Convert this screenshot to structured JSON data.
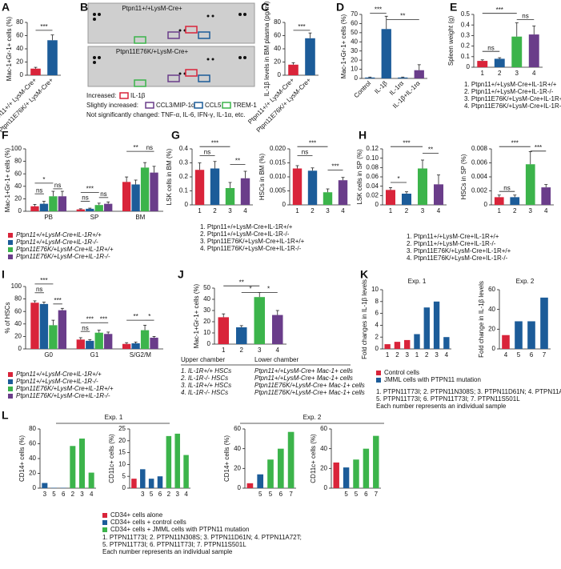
{
  "panel_b": {
    "letter": "B",
    "blot_titles": [
      "Ptpn11+/+LysM-Cre+",
      "Ptpn11E76K/+LysM-Cre+"
    ],
    "legend": [
      "Increased:",
      "IL-1β",
      "Slightly increased:",
      "CCL3/MIP-1α",
      "CCL5",
      "TREM-1",
      "Not significantly changed:  TNF-α, IL-6, IFN-γ, IL-1α, etc."
    ]
  },
  "chart_data": [
    {
      "type": "bar",
      "panel": "A",
      "ylabel": "Mac-1+Gr-1+ cells (%)",
      "categories": [
        "Ptpn11+/+ LysM-Cre+",
        "Ptpn11E76K/+ LysM-Cre+"
      ],
      "values": [
        10,
        53
      ],
      "errors": [
        2,
        8
      ],
      "colors": [
        "#d9243a",
        "#1c5c99"
      ],
      "ylim": [
        0,
        80
      ],
      "yticks": [
        0,
        20,
        40,
        60,
        80
      ],
      "annotations": [
        "***"
      ]
    },
    {
      "type": "bar",
      "panel": "C",
      "ylabel": "IL-1β levels in BM plasma (pg/ml)",
      "categories": [
        "Ptpn11+/+ LysM-Cre+",
        "Ptpn11E76K/+ LysM-Cre+"
      ],
      "values": [
        16,
        56
      ],
      "errors": [
        3,
        8
      ],
      "colors": [
        "#d9243a",
        "#1c5c99"
      ],
      "ylim": [
        0,
        80
      ],
      "yticks": [
        0,
        20,
        40,
        60,
        80
      ],
      "annotations": [
        "***"
      ]
    },
    {
      "type": "bar",
      "panel": "D",
      "ylabel": "Mac-1+Gr-1+ cells (%)",
      "categories": [
        "Control",
        "IL-1β",
        "IL-1rα",
        "IL-1β+IL-1rα"
      ],
      "values": [
        1,
        54,
        1,
        9
      ],
      "errors": [
        0.5,
        14,
        0.5,
        6
      ],
      "colors": [
        "#1c5c99",
        "#1c5c99",
        "#1c5c99",
        "#6a3d8a"
      ],
      "ylim": [
        0,
        70
      ],
      "yticks": [
        0,
        10,
        20,
        30,
        40,
        50,
        60,
        70
      ],
      "annotations": [
        "***",
        "**"
      ]
    },
    {
      "type": "bar",
      "panel": "E",
      "ylabel": "Spleen weight (g)",
      "categories": [
        "1",
        "2",
        "3",
        "4"
      ],
      "values": [
        0.06,
        0.08,
        0.29,
        0.31
      ],
      "errors": [
        0.01,
        0.01,
        0.13,
        0.08
      ],
      "colors": [
        "#d9243a",
        "#1c5c99",
        "#3cb44b",
        "#6a3d8a"
      ],
      "ylim": [
        0,
        0.5
      ],
      "yticks": [
        0,
        0.1,
        0.2,
        0.3,
        0.4,
        0.5
      ],
      "annotations": [
        "ns",
        "***",
        "ns"
      ],
      "notes": [
        "1. Ptpn11+/+LysM-Cre+IL-1R+/+",
        "2. Ptpn11+/+LysM-Cre+IL-1R-/-",
        "3. Ptpn11E76K/+LysM-Cre+IL-1R+/+",
        "4. Ptpn11E76K/+LysM-Cre+IL-1R-/-"
      ]
    },
    {
      "type": "bar",
      "panel": "F",
      "ylabel": "Mac-1+Gr-1+ cells (%)",
      "categories": [
        "PB",
        "SP",
        "BM"
      ],
      "ylim": [
        0,
        100
      ],
      "yticks": [
        0,
        20,
        40,
        60,
        80,
        100
      ],
      "series": [
        {
          "name": "Ptpn11+/+LysM-Cre+IL-1R+/+",
          "color": "#d9243a",
          "values": [
            8,
            3,
            47
          ],
          "errors": [
            3,
            1,
            8
          ]
        },
        {
          "name": "Ptpn11+/+LysM-Cre+IL-1R-/-",
          "color": "#1c5c99",
          "values": [
            12,
            4,
            43
          ],
          "errors": [
            4,
            1,
            7
          ]
        },
        {
          "name": "Ptpn11E76K/+LysM-Cre+IL-1R+/+",
          "color": "#3cb44b",
          "values": [
            24,
            10,
            70
          ],
          "errors": [
            8,
            3,
            8
          ]
        },
        {
          "name": "Ptpn11E76K/+LysM-Cre+IL-1R-/-",
          "color": "#6a3d8a",
          "values": [
            24,
            12,
            62
          ],
          "errors": [
            8,
            3,
            10
          ]
        }
      ],
      "annotations": [
        "*",
        "ns",
        "ns",
        "***",
        "ns",
        "ns",
        "**",
        "ns"
      ]
    },
    {
      "type": "bar",
      "panel": "G",
      "ylabel": "LSK cells in BM (%)",
      "categories": [
        "1",
        "2",
        "3",
        "4"
      ],
      "values": [
        0.25,
        0.26,
        0.12,
        0.19
      ],
      "errors": [
        0.05,
        0.05,
        0.04,
        0.05
      ],
      "colors": [
        "#d9243a",
        "#1c5c99",
        "#3cb44b",
        "#6a3d8a"
      ],
      "ylim": [
        0,
        0.4
      ],
      "yticks": [
        0,
        0.1,
        0.2,
        0.3,
        0.4
      ],
      "annotations": [
        "***",
        "ns",
        "**"
      ],
      "notes": [
        "1. Ptpn11+/+LysM-Cre+IL-1R+/+",
        "2. Ptpn11+/+LysM-Cre+IL-1R-/-",
        "3. Ptpn11E76K/+LysM-Cre+IL-1R+/+",
        "4. Ptpn11E76K/+LysM-Cre+IL-1R-/-"
      ]
    },
    {
      "type": "bar",
      "ylabel": "HSCs in BM (%)",
      "categories": [
        "1",
        "2",
        "3",
        "4"
      ],
      "values": [
        0.013,
        0.0122,
        0.0045,
        0.0088
      ],
      "errors": [
        0.001,
        0.001,
        0.0012,
        0.001
      ],
      "colors": [
        "#d9243a",
        "#1c5c99",
        "#3cb44b",
        "#6a3d8a"
      ],
      "ylim": [
        0,
        0.02
      ],
      "yticks": [
        0,
        0.005,
        {
          "value": 0.01,
          "label": "0.010"
        },
        0.015,
        {
          "value": 0.02,
          "label": "0.020"
        }
      ],
      "annotations": [
        "***",
        "ns",
        "***"
      ]
    },
    {
      "type": "bar",
      "panel": "H",
      "ylabel": "LSK cells in SP (%)",
      "categories": [
        "1",
        "2",
        "3",
        "4"
      ],
      "values": [
        0.032,
        0.024,
        0.078,
        0.044
      ],
      "errors": [
        0.005,
        0.004,
        0.018,
        0.02
      ],
      "colors": [
        "#d9243a",
        "#1c5c99",
        "#3cb44b",
        "#6a3d8a"
      ],
      "ylim": [
        0,
        0.12
      ],
      "yticks": [
        0,
        0.02,
        0.04,
        0.06,
        0.08,
        {
          "value": 0.1,
          "label": "0.10"
        },
        0.12
      ],
      "annotations": [
        "*",
        "***",
        "**"
      ],
      "notes": [
        "1. Ptpn11+/+LysM-Cre+IL-1R+/+",
        "2. Ptpn11+/+LysM-Cre+IL-1R-/-",
        "3. Ptpn11E76K/+LysM-Cre+IL-1R+/+",
        "4. Ptpn11E76K/+LysM-Cre+IL-1R-/-"
      ]
    },
    {
      "type": "bar",
      "ylabel": "HSCs in SP (%)",
      "categories": [
        "1",
        "2",
        "3",
        "4"
      ],
      "values": [
        0.0011,
        0.0011,
        0.0058,
        0.0025
      ],
      "errors": [
        0.0003,
        0.0003,
        0.0018,
        0.0004
      ],
      "colors": [
        "#d9243a",
        "#1c5c99",
        "#3cb44b",
        "#6a3d8a"
      ],
      "ylim": [
        0,
        0.008
      ],
      "yticks": [
        0,
        0.002,
        0.004,
        0.006,
        0.008
      ],
      "annotations": [
        "ns",
        "***",
        "***"
      ]
    },
    {
      "type": "bar",
      "panel": "I",
      "ylabel": "% of HSCs",
      "categories": [
        "G0",
        "G1",
        "S/G2/M"
      ],
      "ylim": [
        0,
        100
      ],
      "yticks": [
        0,
        20,
        40,
        60,
        80,
        100
      ],
      "series": [
        {
          "name": "Ptpn11+/+LysM-Cre+IL-1R+/+",
          "color": "#d9243a",
          "values": [
            74,
            15,
            8
          ],
          "errors": [
            3,
            3,
            2
          ]
        },
        {
          "name": "Ptpn11+/+LysM-Cre+IL-1R-/-",
          "color": "#1c5c99",
          "values": [
            72,
            13,
            9
          ],
          "errors": [
            3,
            2,
            2
          ]
        },
        {
          "name": "Ptpn11E76K/+LysM-Cre+IL-1R+/+",
          "color": "#3cb44b",
          "values": [
            38,
            26,
            30
          ],
          "errors": [
            8,
            4,
            8
          ]
        },
        {
          "name": "Ptpn11E76K/+LysM-Cre+IL-1R-/-",
          "color": "#6a3d8a",
          "values": [
            62,
            24,
            18
          ],
          "errors": [
            3,
            3,
            2
          ]
        }
      ],
      "annotations": [
        "***",
        "ns",
        "***",
        "ns",
        "***",
        "***",
        "**",
        "*"
      ]
    },
    {
      "type": "bar",
      "panel": "J",
      "ylabel": "Mac-1+Gr-1+ cells (%)",
      "categories": [
        "1",
        "2",
        "3",
        "4"
      ],
      "values": [
        24,
        15,
        42,
        26
      ],
      "errors": [
        3,
        1.5,
        4,
        4
      ],
      "colors": [
        "#d9243a",
        "#1c5c99",
        "#3cb44b",
        "#6a3d8a"
      ],
      "ylim": [
        0,
        50
      ],
      "yticks": [
        0,
        10,
        20,
        30,
        40,
        50
      ],
      "annotations": [
        "**",
        "*",
        "*"
      ],
      "table": {
        "header": [
          "Upper chamber",
          "Lower chamber"
        ],
        "rows": [
          [
            "1. IL-1R+/+ HSCs",
            "Ptpn11+/+LysM-Cre+ Mac-1+ cells"
          ],
          [
            "2. IL-1R-/- HSCs",
            "Ptpn11+/+LysM-Cre+ Mac-1+ cells"
          ],
          [
            "3. IL-1R+/+ HSCs",
            "Ptpn11E76K/+LysM-Cre+ Mac-1+ cells"
          ],
          [
            "4. IL-1R-/- HSCs",
            "Ptpn11E76K/+LysM-Cre+ Mac-1+ cells"
          ]
        ]
      }
    },
    {
      "type": "bar",
      "panel": "K",
      "title": "Exp. 1",
      "ylabel": "Fold changes in IL-1β levels",
      "categories": [
        "1",
        "2",
        "3",
        "1",
        "2",
        "3",
        "4"
      ],
      "values": [
        0.8,
        1.2,
        1.5,
        2.5,
        7,
        8,
        2
      ],
      "colors": [
        "#d9243a",
        "#d9243a",
        "#d9243a",
        "#1c5c99",
        "#1c5c99",
        "#1c5c99",
        "#1c5c99"
      ],
      "ylim": [
        0,
        10
      ],
      "yticks": [
        0,
        2,
        4,
        6,
        8,
        10
      ],
      "legend": [
        {
          "name": "Control cells",
          "color": "#d9243a"
        },
        {
          "name": "JMML cells with PTPN11 mutation",
          "color": "#1c5c99"
        }
      ],
      "notes": [
        "1. PTPN11T73I; 2. PTPN11N308S; 3. PTPN11D61N; 4. PTPN11A72T;",
        "5. PTPN11T73I; 6. PTPN11T73I; 7. PTPN11S501L",
        "Each number represents an individual sample"
      ]
    },
    {
      "type": "bar",
      "title": "Exp. 2",
      "ylabel": "Fold change in IL-1β levels",
      "categories": [
        "4",
        "5",
        "6",
        "7"
      ],
      "values": [
        14,
        28,
        28,
        52
      ],
      "colors": [
        "#d9243a",
        "#1c5c99",
        "#1c5c99",
        "#1c5c99"
      ],
      "ylim": [
        0,
        60
      ],
      "yticks": [
        0,
        20,
        40,
        60
      ]
    },
    {
      "type": "bar",
      "panel": "L",
      "title": "Exp. 1",
      "ylabel": "CD14+ cells (%)",
      "categories": [
        "3",
        "5",
        "6",
        "2",
        "3",
        "4"
      ],
      "values": [
        7,
        0.5,
        0.5,
        57,
        67,
        21
      ],
      "colors": [
        "#1c5c99",
        "#1c5c99",
        "#1c5c99",
        "#3cb44b",
        "#3cb44b",
        "#3cb44b"
      ],
      "ylim": [
        0,
        80
      ],
      "yticks": [
        0,
        20,
        40,
        60,
        80
      ],
      "legend": [
        {
          "name": "CD34+ cells alone",
          "color": "#d9243a"
        },
        {
          "name": "CD34+ cells + control cells",
          "color": "#1c5c99"
        },
        {
          "name": "CD34+ cells + JMML cells with PTPN11 mutation",
          "color": "#3cb44b"
        }
      ],
      "notes": [
        "1. PTPN11T73I; 2. PTPN11N308S; 3. PTPN11D61N; 4. PTPN11A72T;",
        "5. PTPN11T73I; 6. PTPN11T73I; 7. PTPN11S501L",
        "Each number represents an individual sample"
      ]
    },
    {
      "type": "bar",
      "ylabel": "CD11c+ cells (%)",
      "categories": [
        null,
        "3",
        "5",
        "6",
        "2",
        "3",
        "4"
      ],
      "values": [
        4,
        8,
        4,
        5,
        22,
        23,
        14
      ],
      "colors": [
        "#d9243a",
        "#1c5c99",
        "#1c5c99",
        "#1c5c99",
        "#3cb44b",
        "#3cb44b",
        "#3cb44b"
      ],
      "ylim": [
        0,
        25
      ],
      "yticks": [
        0,
        5,
        10,
        15,
        20,
        25
      ]
    },
    {
      "type": "bar",
      "title": "Exp. 2",
      "ylabel": "CD14+ cells (%)",
      "categories": [
        null,
        "5",
        "5",
        "6",
        "7"
      ],
      "values": [
        5,
        14,
        29,
        40,
        57
      ],
      "colors": [
        "#d9243a",
        "#1c5c99",
        "#3cb44b",
        "#3cb44b",
        "#3cb44b"
      ],
      "ylim": [
        0,
        60
      ],
      "yticks": [
        0,
        20,
        40,
        60
      ]
    },
    {
      "type": "bar",
      "ylabel": "CD11c+ cells (%)",
      "categories": [
        null,
        "5",
        "5",
        "6",
        "7"
      ],
      "values": [
        26,
        21,
        29,
        40,
        53
      ],
      "colors": [
        "#d9243a",
        "#1c5c99",
        "#3cb44b",
        "#3cb44b",
        "#3cb44b"
      ],
      "ylim": [
        0,
        60
      ],
      "yticks": [
        0,
        20,
        40,
        60
      ]
    }
  ]
}
